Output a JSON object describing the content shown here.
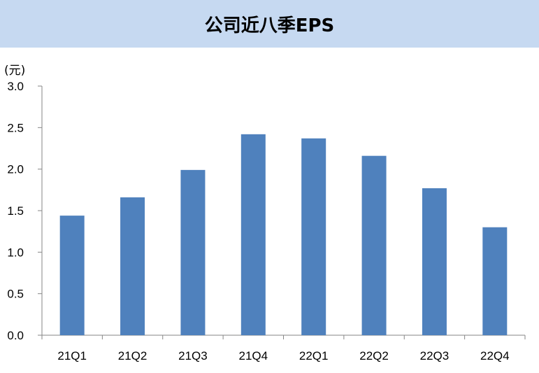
{
  "chart_data": {
    "type": "bar",
    "title": "公司近八季EPS",
    "unit_label": "(元)",
    "categories": [
      "21Q1",
      "21Q2",
      "21Q3",
      "21Q4",
      "22Q1",
      "22Q2",
      "22Q3",
      "22Q4"
    ],
    "values": [
      1.44,
      1.66,
      1.99,
      2.42,
      2.37,
      2.16,
      1.77,
      1.3
    ],
    "ylim": [
      0,
      3.0
    ],
    "yticks": [
      "0.0",
      "0.5",
      "1.0",
      "1.5",
      "2.0",
      "2.5",
      "3.0"
    ],
    "grid": false,
    "legend": "none",
    "bar_color": "#4f81bd",
    "title_background": "#c6d9f1"
  }
}
